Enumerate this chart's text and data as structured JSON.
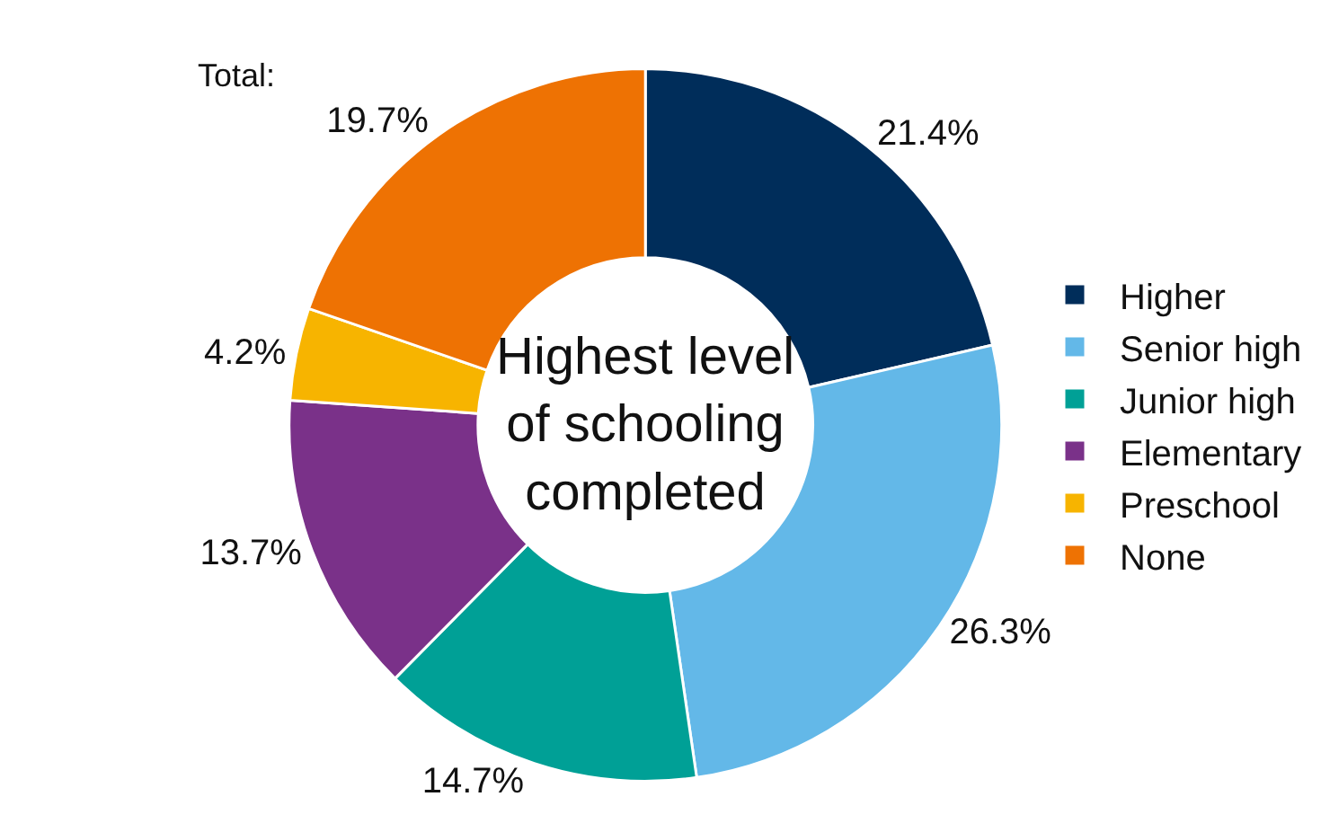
{
  "chart_data": {
    "type": "donut",
    "title": "Highest level\nof schooling\ncompleted",
    "categories": [
      "Higher",
      "Senior high",
      "Junior high",
      "Elementary",
      "Preschool",
      "None"
    ],
    "values": [
      21.4,
      26.3,
      14.7,
      13.7,
      4.2,
      19.7
    ],
    "colors": [
      "#002d5a",
      "#63b8e8",
      "#00a096",
      "#7a3189",
      "#f7b400",
      "#ee7203"
    ],
    "value_labels": [
      "21.4%",
      "26.3%",
      "14.7%",
      "13.7%",
      "4.2%",
      "19.7%"
    ],
    "annotations": [
      "Total:"
    ],
    "legend": "right"
  }
}
